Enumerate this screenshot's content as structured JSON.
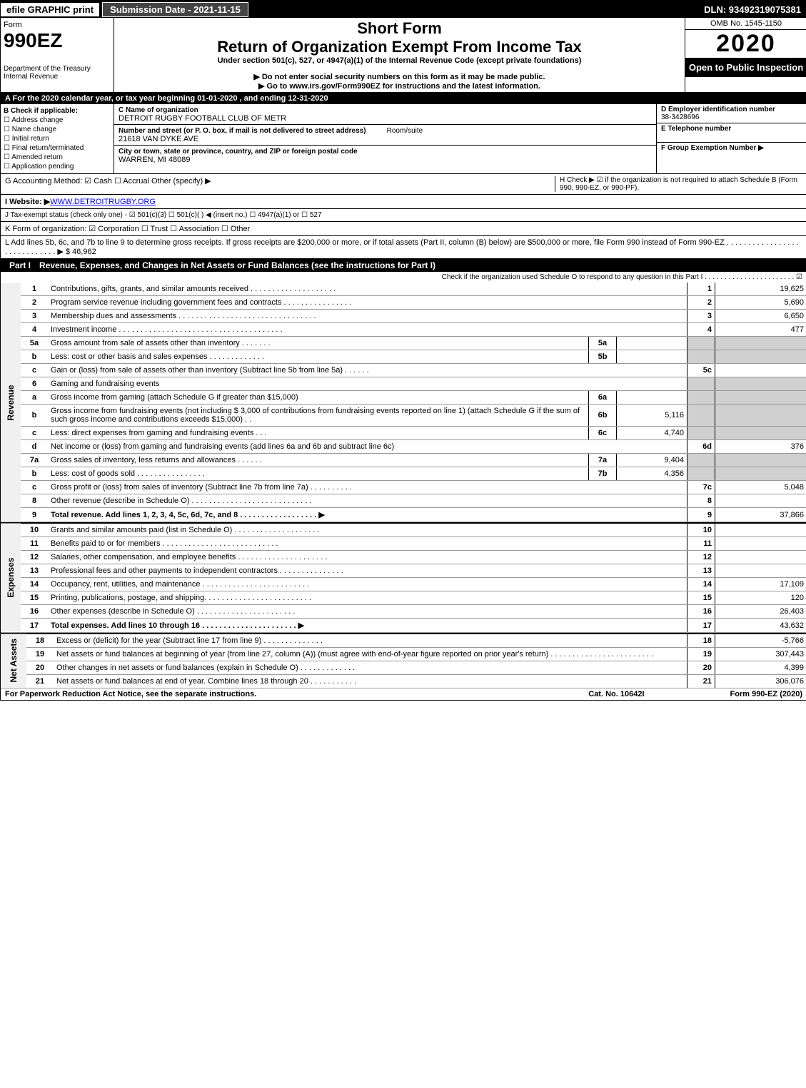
{
  "topbar": {
    "efile": "efile GRAPHIC print",
    "subdate": "Submission Date - 2021-11-15",
    "dln": "DLN: 93492319075381"
  },
  "header": {
    "form": "Form",
    "formno": "990EZ",
    "dept": "Department of the Treasury Internal Revenue",
    "shortform": "Short Form",
    "maintitle": "Return of Organization Exempt From Income Tax",
    "subtitle": "Under section 501(c), 527, or 4947(a)(1) of the Internal Revenue Code (except private foundations)",
    "arrow1": "▶ Do not enter social security numbers on this form as it may be made public.",
    "arrow2": "▶ Go to www.irs.gov/Form990EZ for instructions and the latest information.",
    "omb": "OMB No. 1545-1150",
    "year": "2020",
    "inspection": "Open to Public Inspection"
  },
  "taxyear": "A For the 2020 calendar year, or tax year beginning 01-01-2020 , and ending 12-31-2020",
  "boxB": {
    "label": "B Check if applicable:",
    "items": [
      "Address change",
      "Name change",
      "Initial return",
      "Final return/terminated",
      "Amended return",
      "Application pending"
    ]
  },
  "boxC": {
    "nameLabel": "C Name of organization",
    "name": "DETROIT RUGBY FOOTBALL CLUB OF METR",
    "streetLabel": "Number and street (or P. O. box, if mail is not delivered to street address)",
    "roomLabel": "Room/suite",
    "street": "21618 VAN DYKE AVE",
    "cityLabel": "City or town, state or province, country, and ZIP or foreign postal code",
    "city": "WARREN, MI  48089"
  },
  "boxD": {
    "label": "D Employer identification number",
    "value": "38-3428696"
  },
  "boxE": {
    "label": "E Telephone number"
  },
  "boxF": {
    "label": "F Group Exemption Number ▶"
  },
  "lineG": "G Accounting Method:  ☑ Cash  ☐ Accrual  Other (specify) ▶",
  "lineH": "H  Check ▶ ☑ if the organization is not required to attach Schedule B (Form 990, 990-EZ, or 990-PF).",
  "lineI_label": "I Website: ▶",
  "lineI_value": "WWW.DETROITRUGBY.ORG",
  "lineJ": "J Tax-exempt status (check only one) - ☑ 501(c)(3) ☐ 501(c)(  ) ◀ (insert no.) ☐ 4947(a)(1) or ☐ 527",
  "lineK": "K Form of organization: ☑ Corporation  ☐ Trust  ☐ Association  ☐ Other",
  "lineL": "L Add lines 5b, 6c, and 7b to line 9 to determine gross receipts. If gross receipts are $200,000 or more, or if total assets (Part II, column (B) below) are $500,000 or more, file Form 990 instead of Form 990-EZ  . . . . . . . . . . . . . . . . . . . . . . . . . . . . . ▶ $ 46,962",
  "part1": {
    "label": "Part I",
    "desc": "Revenue, Expenses, and Changes in Net Assets or Fund Balances (see the instructions for Part I)",
    "check": "Check if the organization used Schedule O to respond to any question in this Part I . . . . . . . . . . . . . . . . . . . . . . . ☑"
  },
  "sidebar": {
    "revenue": "Revenue",
    "expenses": "Expenses",
    "netassets": "Net Assets"
  },
  "rows": [
    {
      "n": "1",
      "desc": "Contributions, gifts, grants, and similar amounts received . . . . . . . . . . . . . . . . . . . .",
      "rn": "1",
      "amt": "19,625"
    },
    {
      "n": "2",
      "desc": "Program service revenue including government fees and contracts . . . . . . . . . . . . . . . .",
      "rn": "2",
      "amt": "5,690"
    },
    {
      "n": "3",
      "desc": "Membership dues and assessments . . . . . . . . . . . . . . . . . . . . . . . . . . . . . . . .",
      "rn": "3",
      "amt": "6,650"
    },
    {
      "n": "4",
      "desc": "Investment income . . . . . . . . . . . . . . . . . . . . . . . . . . . . . . . . . . . . . .",
      "rn": "4",
      "amt": "477"
    },
    {
      "n": "5a",
      "desc": "Gross amount from sale of assets other than inventory . . . . . . .",
      "in": "5a",
      "iv": "",
      "gray": true
    },
    {
      "n": "b",
      "desc": "Less: cost or other basis and sales expenses . . . . . . . . . . . . .",
      "in": "5b",
      "iv": "",
      "gray": true
    },
    {
      "n": "c",
      "desc": "Gain or (loss) from sale of assets other than inventory (Subtract line 5b from line 5a) . . . . . .",
      "rn": "5c",
      "amt": ""
    },
    {
      "n": "6",
      "desc": "Gaming and fundraising events",
      "gray": true
    },
    {
      "n": "a",
      "desc": "Gross income from gaming (attach Schedule G if greater than $15,000)",
      "in": "6a",
      "iv": "",
      "gray": true
    },
    {
      "n": "b",
      "desc": "Gross income from fundraising events (not including $  3,000           of contributions from fundraising events reported on line 1) (attach Schedule G if the sum of such gross income and contributions exceeds $15,000)  . .",
      "in": "6b",
      "iv": "5,116",
      "gray": true
    },
    {
      "n": "c",
      "desc": "Less: direct expenses from gaming and fundraising events          . . .",
      "in": "6c",
      "iv": "4,740",
      "gray": true
    },
    {
      "n": "d",
      "desc": "Net income or (loss) from gaming and fundraising events (add lines 6a and 6b and subtract line 6c)",
      "rn": "6d",
      "amt": "376"
    },
    {
      "n": "7a",
      "desc": "Gross sales of inventory, less returns and allowances . . . . . .",
      "in": "7a",
      "iv": "9,404",
      "gray": true
    },
    {
      "n": "b",
      "desc": "Less: cost of goods sold         . . . . . . . . . . . . . . . .",
      "in": "7b",
      "iv": "4,356",
      "gray": true
    },
    {
      "n": "c",
      "desc": "Gross profit or (loss) from sales of inventory (Subtract line 7b from line 7a) . . . . . . . . . .",
      "rn": "7c",
      "amt": "5,048"
    },
    {
      "n": "8",
      "desc": "Other revenue (describe in Schedule O) . . . . . . . . . . . . . . . . . . . . . . . . . . . .",
      "rn": "8",
      "amt": ""
    },
    {
      "n": "9",
      "desc": "Total revenue. Add lines 1, 2, 3, 4, 5c, 6d, 7c, and 8  . . . . . . . . . . . . . . . . . . ▶",
      "rn": "9",
      "amt": "37,866",
      "bold": true
    }
  ],
  "exp_rows": [
    {
      "n": "10",
      "desc": "Grants and similar amounts paid (list in Schedule O) . . . . . . . . . . . . . . . . . . . .",
      "rn": "10",
      "amt": ""
    },
    {
      "n": "11",
      "desc": "Benefits paid to or for members        . . . . . . . . . . . . . . . . . . . . . . . . . . .",
      "rn": "11",
      "amt": ""
    },
    {
      "n": "12",
      "desc": "Salaries, other compensation, and employee benefits . . . . . . . . . . . . . . . . . . . . .",
      "rn": "12",
      "amt": ""
    },
    {
      "n": "13",
      "desc": "Professional fees and other payments to independent contractors . . . . . . . . . . . . . . .",
      "rn": "13",
      "amt": ""
    },
    {
      "n": "14",
      "desc": "Occupancy, rent, utilities, and maintenance . . . . . . . . . . . . . . . . . . . . . . . . .",
      "rn": "14",
      "amt": "17,109"
    },
    {
      "n": "15",
      "desc": "Printing, publications, postage, and shipping. . . . . . . . . . . . . . . . . . . . . . . . .",
      "rn": "15",
      "amt": "120"
    },
    {
      "n": "16",
      "desc": "Other expenses (describe in Schedule O)        . . . . . . . . . . . . . . . . . . . . . . .",
      "rn": "16",
      "amt": "26,403"
    },
    {
      "n": "17",
      "desc": "Total expenses. Add lines 10 through 16       . . . . . . . . . . . . . . . . . . . . . . ▶",
      "rn": "17",
      "amt": "43,632",
      "bold": true
    }
  ],
  "net_rows": [
    {
      "n": "18",
      "desc": "Excess or (deficit) for the year (Subtract line 17 from line 9)        . . . . . . . . . . . . . .",
      "rn": "18",
      "amt": "-5,766"
    },
    {
      "n": "19",
      "desc": "Net assets or fund balances at beginning of year (from line 27, column (A)) (must agree with end-of-year figure reported on prior year's return) . . . . . . . . . . . . . . . . . . . . . . . .",
      "rn": "19",
      "amt": "307,443"
    },
    {
      "n": "20",
      "desc": "Other changes in net assets or fund balances (explain in Schedule O) . . . . . . . . . . . . .",
      "rn": "20",
      "amt": "4,399"
    },
    {
      "n": "21",
      "desc": "Net assets or fund balances at end of year. Combine lines 18 through 20 . . . . . . . . . . .",
      "rn": "21",
      "amt": "306,076"
    }
  ],
  "footer": {
    "left": "For Paperwork Reduction Act Notice, see the separate instructions.",
    "center": "Cat. No. 10642I",
    "right": "Form 990-EZ (2020)"
  }
}
